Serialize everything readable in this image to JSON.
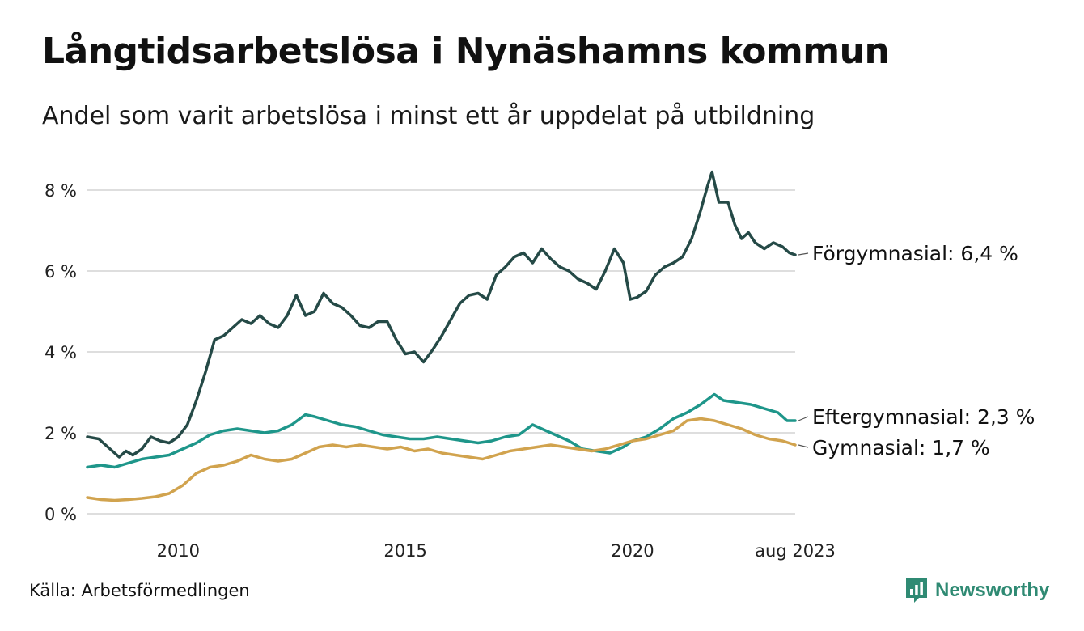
{
  "title": "Långtidsarbetslösa i Nynäshamns kommun",
  "subtitle": "Andel som varit arbetslösa i minst ett år uppdelat på utbildning",
  "source": "Källa: Arbetsförmedlingen",
  "brand": "Newsworthy",
  "colors": {
    "forgymnasial": "#254a47",
    "eftergymnasial": "#1e968a",
    "gymnasial": "#d1a34e",
    "grid": "#dedede",
    "brand": "#2f8a73"
  },
  "chart_data": {
    "type": "line",
    "x_unit": "year (decimal)",
    "xlim": [
      2008.0,
      2023.58
    ],
    "ylim": [
      0,
      9
    ],
    "y_ticks": [
      0,
      2,
      4,
      6,
      8
    ],
    "y_tick_labels": [
      "0 %",
      "2 %",
      "4 %",
      "6 %",
      "8 %"
    ],
    "x_ticks": [
      2010,
      2015,
      2020,
      2023.58
    ],
    "x_tick_labels": [
      "2010",
      "2015",
      "2020",
      "aug 2023"
    ],
    "grid": true,
    "legend": "direct labels at line ends",
    "series": [
      {
        "name": "Förgymnasial",
        "end_label": "Förgymnasial: 6,4 %",
        "color_key": "forgymnasial",
        "points": [
          [
            2008.0,
            1.9
          ],
          [
            2008.25,
            1.85
          ],
          [
            2008.5,
            1.6
          ],
          [
            2008.7,
            1.4
          ],
          [
            2008.85,
            1.55
          ],
          [
            2009.0,
            1.45
          ],
          [
            2009.2,
            1.6
          ],
          [
            2009.4,
            1.9
          ],
          [
            2009.6,
            1.8
          ],
          [
            2009.8,
            1.75
          ],
          [
            2010.0,
            1.9
          ],
          [
            2010.2,
            2.2
          ],
          [
            2010.4,
            2.8
          ],
          [
            2010.6,
            3.5
          ],
          [
            2010.8,
            4.3
          ],
          [
            2011.0,
            4.4
          ],
          [
            2011.2,
            4.6
          ],
          [
            2011.4,
            4.8
          ],
          [
            2011.6,
            4.7
          ],
          [
            2011.8,
            4.9
          ],
          [
            2012.0,
            4.7
          ],
          [
            2012.2,
            4.6
          ],
          [
            2012.4,
            4.9
          ],
          [
            2012.6,
            5.4
          ],
          [
            2012.8,
            4.9
          ],
          [
            2013.0,
            5.0
          ],
          [
            2013.2,
            5.45
          ],
          [
            2013.4,
            5.2
          ],
          [
            2013.6,
            5.1
          ],
          [
            2013.8,
            4.9
          ],
          [
            2014.0,
            4.65
          ],
          [
            2014.2,
            4.6
          ],
          [
            2014.4,
            4.75
          ],
          [
            2014.6,
            4.75
          ],
          [
            2014.8,
            4.3
          ],
          [
            2015.0,
            3.95
          ],
          [
            2015.2,
            4.0
          ],
          [
            2015.4,
            3.75
          ],
          [
            2015.6,
            4.05
          ],
          [
            2015.8,
            4.4
          ],
          [
            2016.0,
            4.8
          ],
          [
            2016.2,
            5.2
          ],
          [
            2016.4,
            5.4
          ],
          [
            2016.6,
            5.45
          ],
          [
            2016.8,
            5.3
          ],
          [
            2017.0,
            5.9
          ],
          [
            2017.2,
            6.1
          ],
          [
            2017.4,
            6.35
          ],
          [
            2017.6,
            6.45
          ],
          [
            2017.8,
            6.2
          ],
          [
            2018.0,
            6.55
          ],
          [
            2018.2,
            6.3
          ],
          [
            2018.4,
            6.1
          ],
          [
            2018.6,
            6.0
          ],
          [
            2018.8,
            5.8
          ],
          [
            2019.0,
            5.7
          ],
          [
            2019.2,
            5.55
          ],
          [
            2019.4,
            6.0
          ],
          [
            2019.6,
            6.55
          ],
          [
            2019.8,
            6.2
          ],
          [
            2019.95,
            5.3
          ],
          [
            2020.1,
            5.35
          ],
          [
            2020.3,
            5.5
          ],
          [
            2020.5,
            5.9
          ],
          [
            2020.7,
            6.1
          ],
          [
            2020.9,
            6.2
          ],
          [
            2021.1,
            6.35
          ],
          [
            2021.3,
            6.8
          ],
          [
            2021.5,
            7.5
          ],
          [
            2021.65,
            8.1
          ],
          [
            2021.75,
            8.45
          ],
          [
            2021.9,
            7.7
          ],
          [
            2022.1,
            7.7
          ],
          [
            2022.25,
            7.15
          ],
          [
            2022.4,
            6.8
          ],
          [
            2022.55,
            6.95
          ],
          [
            2022.7,
            6.7
          ],
          [
            2022.9,
            6.55
          ],
          [
            2023.1,
            6.7
          ],
          [
            2023.3,
            6.6
          ],
          [
            2023.45,
            6.45
          ],
          [
            2023.58,
            6.4
          ]
        ]
      },
      {
        "name": "Eftergymnasial",
        "end_label": "Eftergymnasial: 2,3 %",
        "color_key": "eftergymnasial",
        "points": [
          [
            2008.0,
            1.15
          ],
          [
            2008.3,
            1.2
          ],
          [
            2008.6,
            1.15
          ],
          [
            2008.9,
            1.25
          ],
          [
            2009.2,
            1.35
          ],
          [
            2009.5,
            1.4
          ],
          [
            2009.8,
            1.45
          ],
          [
            2010.1,
            1.6
          ],
          [
            2010.4,
            1.75
          ],
          [
            2010.7,
            1.95
          ],
          [
            2011.0,
            2.05
          ],
          [
            2011.3,
            2.1
          ],
          [
            2011.6,
            2.05
          ],
          [
            2011.9,
            2.0
          ],
          [
            2012.2,
            2.05
          ],
          [
            2012.5,
            2.2
          ],
          [
            2012.8,
            2.45
          ],
          [
            2013.0,
            2.4
          ],
          [
            2013.3,
            2.3
          ],
          [
            2013.6,
            2.2
          ],
          [
            2013.9,
            2.15
          ],
          [
            2014.2,
            2.05
          ],
          [
            2014.5,
            1.95
          ],
          [
            2014.8,
            1.9
          ],
          [
            2015.1,
            1.85
          ],
          [
            2015.4,
            1.85
          ],
          [
            2015.7,
            1.9
          ],
          [
            2016.0,
            1.85
          ],
          [
            2016.3,
            1.8
          ],
          [
            2016.6,
            1.75
          ],
          [
            2016.9,
            1.8
          ],
          [
            2017.2,
            1.9
          ],
          [
            2017.5,
            1.95
          ],
          [
            2017.8,
            2.2
          ],
          [
            2018.0,
            2.1
          ],
          [
            2018.3,
            1.95
          ],
          [
            2018.6,
            1.8
          ],
          [
            2018.9,
            1.6
          ],
          [
            2019.2,
            1.55
          ],
          [
            2019.5,
            1.5
          ],
          [
            2019.8,
            1.65
          ],
          [
            2020.0,
            1.8
          ],
          [
            2020.3,
            1.9
          ],
          [
            2020.6,
            2.1
          ],
          [
            2020.9,
            2.35
          ],
          [
            2021.2,
            2.5
          ],
          [
            2021.5,
            2.7
          ],
          [
            2021.8,
            2.95
          ],
          [
            2022.0,
            2.8
          ],
          [
            2022.3,
            2.75
          ],
          [
            2022.6,
            2.7
          ],
          [
            2022.9,
            2.6
          ],
          [
            2023.2,
            2.5
          ],
          [
            2023.4,
            2.3
          ],
          [
            2023.58,
            2.3
          ]
        ]
      },
      {
        "name": "Gymnasial",
        "end_label": "Gymnasial: 1,7 %",
        "color_key": "gymnasial",
        "points": [
          [
            2008.0,
            0.4
          ],
          [
            2008.3,
            0.35
          ],
          [
            2008.6,
            0.33
          ],
          [
            2008.9,
            0.35
          ],
          [
            2009.2,
            0.38
          ],
          [
            2009.5,
            0.42
          ],
          [
            2009.8,
            0.5
          ],
          [
            2010.1,
            0.7
          ],
          [
            2010.4,
            1.0
          ],
          [
            2010.7,
            1.15
          ],
          [
            2011.0,
            1.2
          ],
          [
            2011.3,
            1.3
          ],
          [
            2011.6,
            1.45
          ],
          [
            2011.9,
            1.35
          ],
          [
            2012.2,
            1.3
          ],
          [
            2012.5,
            1.35
          ],
          [
            2012.8,
            1.5
          ],
          [
            2013.1,
            1.65
          ],
          [
            2013.4,
            1.7
          ],
          [
            2013.7,
            1.65
          ],
          [
            2014.0,
            1.7
          ],
          [
            2014.3,
            1.65
          ],
          [
            2014.6,
            1.6
          ],
          [
            2014.9,
            1.65
          ],
          [
            2015.2,
            1.55
          ],
          [
            2015.5,
            1.6
          ],
          [
            2015.8,
            1.5
          ],
          [
            2016.1,
            1.45
          ],
          [
            2016.4,
            1.4
          ],
          [
            2016.7,
            1.35
          ],
          [
            2017.0,
            1.45
          ],
          [
            2017.3,
            1.55
          ],
          [
            2017.6,
            1.6
          ],
          [
            2017.9,
            1.65
          ],
          [
            2018.2,
            1.7
          ],
          [
            2018.5,
            1.65
          ],
          [
            2018.8,
            1.6
          ],
          [
            2019.1,
            1.55
          ],
          [
            2019.4,
            1.6
          ],
          [
            2019.7,
            1.7
          ],
          [
            2020.0,
            1.8
          ],
          [
            2020.3,
            1.85
          ],
          [
            2020.6,
            1.95
          ],
          [
            2020.9,
            2.05
          ],
          [
            2021.2,
            2.3
          ],
          [
            2021.5,
            2.35
          ],
          [
            2021.8,
            2.3
          ],
          [
            2022.1,
            2.2
          ],
          [
            2022.4,
            2.1
          ],
          [
            2022.7,
            1.95
          ],
          [
            2023.0,
            1.85
          ],
          [
            2023.3,
            1.8
          ],
          [
            2023.58,
            1.7
          ]
        ]
      }
    ]
  }
}
